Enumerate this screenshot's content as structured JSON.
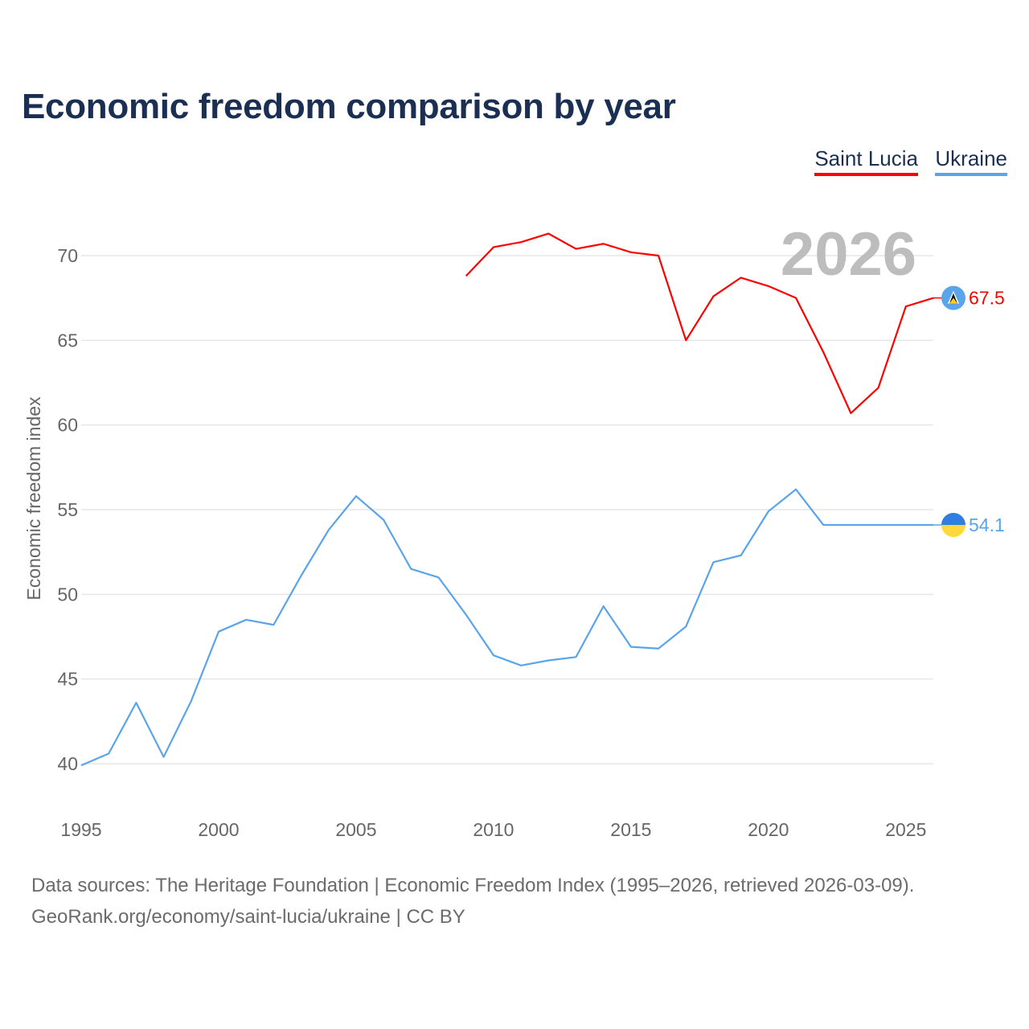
{
  "title": "Economic freedom comparison by year",
  "legend": [
    {
      "name": "Saint Lucia",
      "color": "#ff0000"
    },
    {
      "name": "Ukraine",
      "color": "#5aa4ea"
    }
  ],
  "footer": {
    "line1": "Data sources: The Heritage Foundation | Economic Freedom Index (1995–2026, retrieved 2026-03-09).",
    "line2": "GeoRank.org/economy/saint-lucia/ukraine | CC BY"
  },
  "chart_data": {
    "type": "line",
    "title": "Economic freedom comparison by year",
    "xlabel": "",
    "ylabel": "Economic freedom index",
    "current_year_label": "2026",
    "xlim": [
      1995,
      2026
    ],
    "ylim": [
      40,
      70
    ],
    "x_ticks": [
      1995,
      2000,
      2005,
      2010,
      2015,
      2020,
      2025
    ],
    "y_ticks": [
      40,
      45,
      50,
      55,
      60,
      65,
      70
    ],
    "grid": true,
    "legend_position": "top-right",
    "series": [
      {
        "name": "Saint Lucia",
        "color": "#ff0000",
        "end_label": "67.5",
        "x": [
          2009,
          2010,
          2011,
          2012,
          2013,
          2014,
          2015,
          2016,
          2017,
          2018,
          2019,
          2020,
          2021,
          2022,
          2023,
          2024,
          2025,
          2026
        ],
        "values": [
          68.8,
          70.5,
          70.8,
          71.3,
          70.4,
          70.7,
          70.2,
          70.0,
          65.0,
          67.6,
          68.7,
          68.2,
          67.5,
          64.3,
          60.7,
          62.2,
          67.0,
          67.5
        ]
      },
      {
        "name": "Ukraine",
        "color": "#5aa4ea",
        "end_label": "54.1",
        "x": [
          1995,
          1996,
          1997,
          1998,
          1999,
          2000,
          2001,
          2002,
          2003,
          2004,
          2005,
          2006,
          2007,
          2008,
          2009,
          2010,
          2011,
          2012,
          2013,
          2014,
          2015,
          2016,
          2017,
          2018,
          2019,
          2020,
          2021,
          2022,
          2023,
          2024,
          2025,
          2026
        ],
        "values": [
          39.9,
          40.6,
          43.6,
          40.4,
          43.7,
          47.8,
          48.5,
          48.2,
          51.1,
          53.8,
          55.8,
          54.4,
          51.5,
          51.0,
          48.8,
          46.4,
          45.8,
          46.1,
          46.3,
          49.3,
          46.9,
          46.8,
          48.1,
          51.9,
          52.3,
          54.9,
          56.2,
          54.1,
          54.1,
          54.1,
          54.1,
          54.1
        ]
      }
    ]
  }
}
